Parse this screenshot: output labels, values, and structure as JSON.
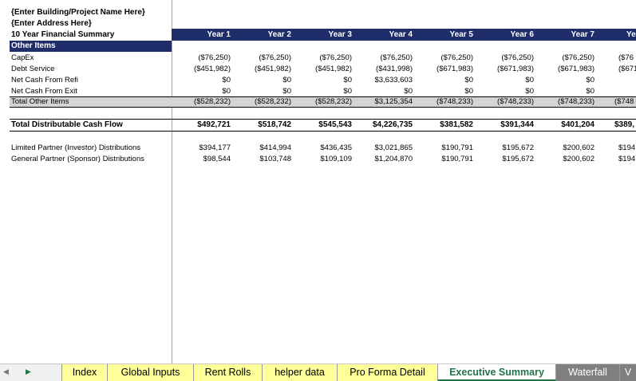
{
  "header": {
    "project": "{Enter Building/Project Name Here}",
    "address": "{Enter Address Here}",
    "summary": "10 Year Financial Summary"
  },
  "years": [
    "Year 1",
    "Year 2",
    "Year 3",
    "Year 4",
    "Year 5",
    "Year 6",
    "Year 7",
    "Ye"
  ],
  "section_title": "Other Items",
  "rows": [
    {
      "label": "CapEx",
      "values": [
        "($76,250)",
        "($76,250)",
        "($76,250)",
        "($76,250)",
        "($76,250)",
        "($76,250)",
        "($76,250)",
        "($76"
      ]
    },
    {
      "label": "Debt Service",
      "values": [
        "($451,982)",
        "($451,982)",
        "($451,982)",
        "($431,998)",
        "($671,983)",
        "($671,983)",
        "($671,983)",
        "($671"
      ]
    },
    {
      "label": "Net Cash From Refi",
      "values": [
        "$0",
        "$0",
        "$0",
        "$3,633,603",
        "$0",
        "$0",
        "$0",
        ""
      ]
    },
    {
      "label": "Net Cash From Exit",
      "values": [
        "$0",
        "$0",
        "$0",
        "$0",
        "$0",
        "$0",
        "$0",
        ""
      ]
    }
  ],
  "total_other": {
    "label": "Total Other Items",
    "values": [
      "($528,232)",
      "($528,232)",
      "($528,232)",
      "$3,125,354",
      "($748,233)",
      "($748,233)",
      "($748,233)",
      "($748"
    ]
  },
  "distributable": {
    "label": "Total Distributable Cash Flow",
    "values": [
      "$492,721",
      "$518,742",
      "$545,543",
      "$4,226,735",
      "$381,582",
      "$391,344",
      "$401,204",
      "$389,"
    ]
  },
  "distributions": [
    {
      "label": "Limited Partner (Investor) Distributions",
      "values": [
        "$394,177",
        "$414,994",
        "$436,435",
        "$3,021,865",
        "$190,791",
        "$195,672",
        "$200,602",
        "$194"
      ]
    },
    {
      "label": "General Partner (Sponsor) Distributions",
      "values": [
        "$98,544",
        "$103,748",
        "$109,109",
        "$1,204,870",
        "$190,791",
        "$195,672",
        "$200,602",
        "$194"
      ]
    }
  ],
  "tabs": [
    "Index",
    "Global Inputs",
    "Rent Rolls",
    "helper data",
    "Pro Forma Detail",
    "Executive Summary",
    "Waterfall",
    "V"
  ],
  "active_tab": "Executive Summary",
  "colors": {
    "header_band": "#1f2d6b",
    "tab_yellow": "#ffff99",
    "active_tab_text": "#217346",
    "waterfall_tab": "#808080"
  }
}
